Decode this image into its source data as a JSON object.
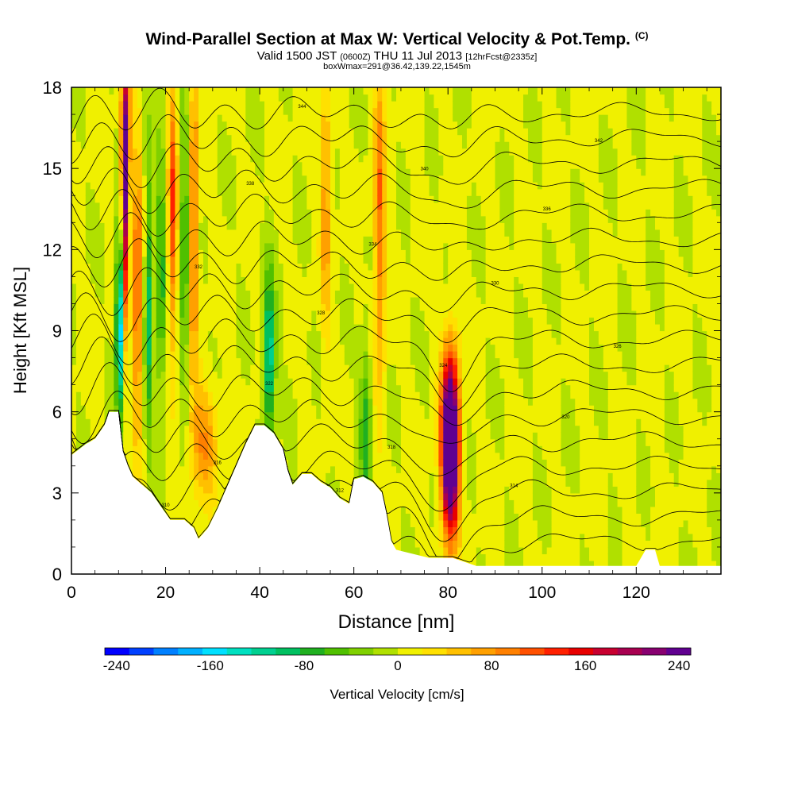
{
  "titles": {
    "main": "Wind-Parallel Section at Max W: Vertical Velocity & Pot.Temp.",
    "main_suffix": "(C)",
    "valid_prefix": "Valid 1500 JST",
    "valid_utc": "(0600Z)",
    "valid_date": "THU 11 Jul 2013",
    "forecast": "[12hrFcst@2335z]",
    "boxwmax": "boxWmax=291@36.42,139.22,1545m"
  },
  "chart_data": {
    "type": "heatmap",
    "xlabel": "Distance [nm]",
    "ylabel": "Height [Kft MSL]",
    "xlim": [
      0,
      138
    ],
    "ylim": [
      0,
      18
    ],
    "x_ticks": [
      0,
      20,
      40,
      60,
      80,
      100,
      120
    ],
    "y_ticks": [
      0,
      3,
      6,
      9,
      12,
      15,
      18
    ],
    "colorbar": {
      "label": "Vertical Velocity [cm/s]",
      "min": -250,
      "max": 250,
      "tick_values": [
        -240,
        -160,
        -80,
        0,
        80,
        160,
        240
      ],
      "tick_labels": [
        "-240",
        "-160",
        "-80",
        "0",
        "80",
        "160",
        "240"
      ],
      "colors": [
        "#0000ff",
        "#0040ff",
        "#0080ff",
        "#00b0ff",
        "#00e0ff",
        "#00e0c0",
        "#00d090",
        "#00c060",
        "#20b020",
        "#50c000",
        "#80d000",
        "#b0e000",
        "#f0f000",
        "#ffe000",
        "#ffc000",
        "#ffa000",
        "#ff8000",
        "#ff5000",
        "#ff2000",
        "#e80000",
        "#c80030",
        "#a80050",
        "#880070",
        "#600090"
      ]
    },
    "terrain_kft": [
      [
        0,
        4.4
      ],
      [
        3,
        4.8
      ],
      [
        5,
        5.0
      ],
      [
        7,
        5.5
      ],
      [
        8,
        6.0
      ],
      [
        10,
        6.0
      ],
      [
        11,
        4.5
      ],
      [
        12,
        4.0
      ],
      [
        13,
        3.6
      ],
      [
        15,
        3.3
      ],
      [
        17,
        3.0
      ],
      [
        19,
        2.5
      ],
      [
        21,
        2.0
      ],
      [
        24,
        2.0
      ],
      [
        26,
        1.7
      ],
      [
        27,
        1.3
      ],
      [
        29,
        1.7
      ],
      [
        31,
        2.4
      ],
      [
        33,
        3.2
      ],
      [
        35,
        4.0
      ],
      [
        37,
        4.8
      ],
      [
        39,
        5.5
      ],
      [
        41,
        5.5
      ],
      [
        43,
        5.2
      ],
      [
        45,
        4.6
      ],
      [
        46,
        3.8
      ],
      [
        47,
        3.3
      ],
      [
        49,
        3.7
      ],
      [
        51,
        3.7
      ],
      [
        53,
        3.4
      ],
      [
        55,
        3.2
      ],
      [
        57,
        2.8
      ],
      [
        59,
        2.6
      ],
      [
        60,
        3.5
      ],
      [
        62,
        3.6
      ],
      [
        64,
        3.4
      ],
      [
        66,
        3.0
      ],
      [
        67,
        2.2
      ],
      [
        68,
        1.2
      ],
      [
        69,
        0.9
      ],
      [
        76,
        0.6
      ],
      [
        81,
        0.6
      ],
      [
        86,
        0.3
      ],
      [
        90,
        0.3
      ],
      [
        120,
        0.3
      ],
      [
        122,
        0.9
      ],
      [
        124,
        0.9
      ],
      [
        125,
        0.3
      ],
      [
        138,
        0.3
      ]
    ],
    "updrafts": [
      {
        "x": 80.5,
        "y": 4.8,
        "w": 0.39,
        "hx": 1.8,
        "hy": 3.1
      },
      {
        "x": 11.5,
        "y": 14.5,
        "w": 0.3,
        "hx": 0.9,
        "hy": 4.5
      },
      {
        "x": 14.0,
        "y": 10.5,
        "w": 0.14,
        "hx": 0.8,
        "hy": 5.0
      },
      {
        "x": 21.5,
        "y": 13.5,
        "w": 0.12,
        "hx": 0.9,
        "hy": 5.0
      },
      {
        "x": 26.0,
        "y": 13.0,
        "w": 0.12,
        "hx": 0.9,
        "hy": 5.0
      },
      {
        "x": 28.0,
        "y": 5.0,
        "w": 0.08,
        "hx": 3.0,
        "hy": 2.0
      },
      {
        "x": 54.0,
        "y": 14.0,
        "w": 0.08,
        "hx": 1.0,
        "hy": 5.0
      },
      {
        "x": 65.5,
        "y": 13.0,
        "w": 0.1,
        "hx": 1.2,
        "hy": 6.0
      }
    ],
    "downdrafts": [
      {
        "x": 10.2,
        "y": 9.5,
        "w": -0.22,
        "hx": 0.7,
        "hy": 3.5
      },
      {
        "x": 12.0,
        "y": 13.0,
        "w": -0.14,
        "hx": 0.5,
        "hy": 2.5
      },
      {
        "x": 16.5,
        "y": 10.0,
        "w": -0.1,
        "hx": 0.8,
        "hy": 5.0
      },
      {
        "x": 19.0,
        "y": 11.0,
        "w": -0.09,
        "hx": 0.8,
        "hy": 5.0
      },
      {
        "x": 24.0,
        "y": 12.0,
        "w": -0.09,
        "hx": 0.8,
        "hy": 5.0
      },
      {
        "x": 42.0,
        "y": 8.0,
        "w": -0.14,
        "hx": 1.2,
        "hy": 3.0
      },
      {
        "x": 62.5,
        "y": 5.5,
        "w": -0.08,
        "hx": 1.2,
        "hy": 3.0
      }
    ],
    "contour_labels": [
      "310",
      "312",
      "314",
      "316",
      "318",
      "320",
      "322",
      "324",
      "326",
      "328",
      "330",
      "332",
      "334",
      "336",
      "338",
      "340",
      "342",
      "344"
    ]
  }
}
